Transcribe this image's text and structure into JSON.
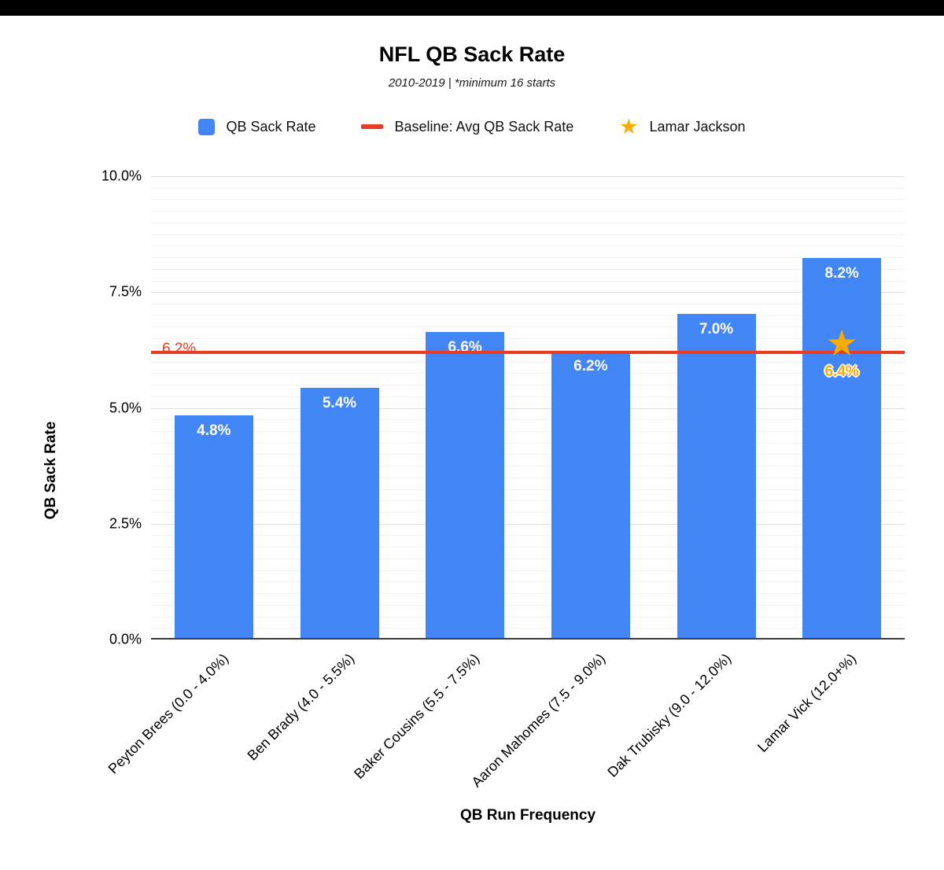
{
  "header": {
    "title": "NFL QB Sack Rate",
    "subtitle": "2010-2019 | *minimum 16 starts"
  },
  "legend": [
    {
      "label": "QB Sack Rate",
      "swatch": "square",
      "color": "#4285f4"
    },
    {
      "label": "Baseline: Avg QB Sack Rate",
      "swatch": "line",
      "color": "#ea3b23"
    },
    {
      "label": "Lamar Jackson",
      "swatch": "star",
      "color": "#f9ab00"
    }
  ],
  "chart_data": {
    "type": "bar",
    "title": "NFL QB Sack Rate",
    "subtitle": "2010-2019 | *minimum 16 starts",
    "xlabel": "QB Run Frequency",
    "ylabel": "QB Sack Rate",
    "ylim": [
      0,
      10
    ],
    "yticks": [
      0,
      2.5,
      5,
      7.5,
      10
    ],
    "ytick_labels": [
      "0.0%",
      "2.5%",
      "5.0%",
      "7.5%",
      "10.0%"
    ],
    "categories": [
      "Peyton Brees (0.0 - 4.0%)",
      "Ben Brady (4.0 - 5.5%)",
      "Baker Cousins (5.5 - 7.5%)",
      "Aaron Mahomes (7.5 - 9.0%)",
      "Dak Trubisky (9.0 - 12.0%)",
      "Lamar Vick (12.0+%)"
    ],
    "series": [
      {
        "name": "QB Sack Rate",
        "values": [
          4.8,
          5.4,
          6.6,
          6.2,
          7.0,
          8.2
        ],
        "labels": [
          "4.8%",
          "5.4%",
          "6.6%",
          "6.2%",
          "7.0%",
          "8.2%"
        ],
        "color": "#4285f4"
      }
    ],
    "baseline": {
      "name": "Baseline: Avg QB Sack Rate",
      "value": 6.2,
      "label": "6.2%",
      "color": "#ea3b23"
    },
    "marker": {
      "name": "Lamar Jackson",
      "shape": "star",
      "category": "Lamar Vick (12.0+%)",
      "category_index": 5,
      "value": 6.4,
      "label": "6.4%",
      "color": "#f9ab00"
    },
    "grid": {
      "horizontal": true,
      "minor_step": 0.25,
      "major_step": 2.5
    },
    "legend_position": "top"
  }
}
